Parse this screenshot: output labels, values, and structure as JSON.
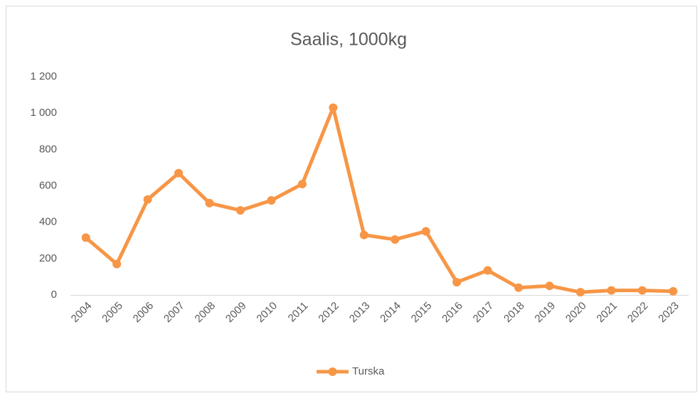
{
  "chart_data": {
    "type": "line",
    "title": "Saalis, 1000kg",
    "categories": [
      "2004",
      "2005",
      "2006",
      "2007",
      "2008",
      "2009",
      "2010",
      "2011",
      "2012",
      "2013",
      "2014",
      "2015",
      "2016",
      "2017",
      "2018",
      "2019",
      "2020",
      "2021",
      "2022",
      "2023"
    ],
    "series": [
      {
        "name": "Turska",
        "color": "#f79646",
        "values": [
          315,
          170,
          525,
          670,
          505,
          465,
          520,
          610,
          1030,
          330,
          305,
          350,
          70,
          135,
          40,
          50,
          15,
          25,
          25,
          20
        ]
      }
    ],
    "ylim": [
      0,
      1200
    ],
    "yticks": [
      0,
      200,
      400,
      600,
      800,
      {
        "value": 1000,
        "label": "1 000"
      },
      {
        "value": 1200,
        "label": "1 200"
      }
    ],
    "grid": false,
    "legend": "bottom"
  }
}
